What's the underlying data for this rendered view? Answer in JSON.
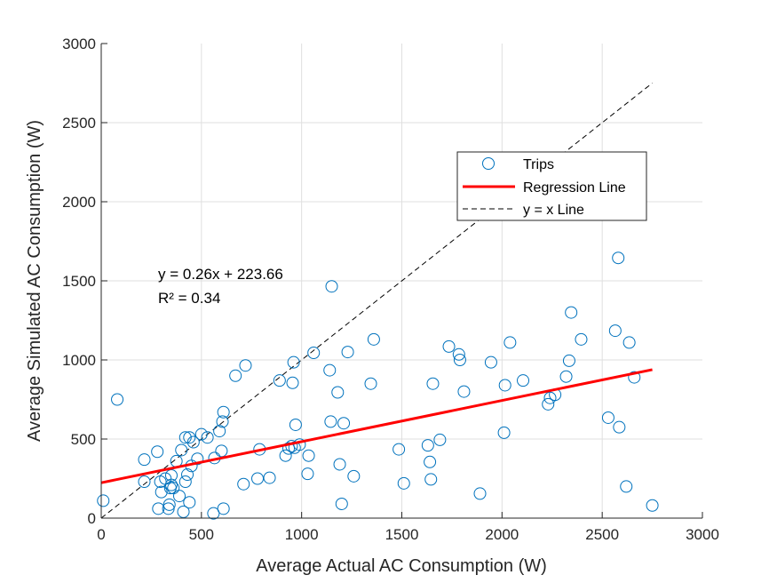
{
  "chart_data": {
    "type": "scatter",
    "title": "",
    "xlabel": "Average Actual AC Consumption (W)",
    "ylabel": "Average Simulated AC Consumption (W)",
    "xlim": [
      0,
      3000
    ],
    "ylim": [
      0,
      3000
    ],
    "xticks": [
      0,
      500,
      1000,
      1500,
      2000,
      2500,
      3000
    ],
    "yticks": [
      0,
      500,
      1000,
      1500,
      2000,
      2500,
      3000
    ],
    "grid": true,
    "legend_position": "upper-right-inside",
    "series": [
      {
        "name": "Trips",
        "kind": "scatter",
        "marker": "circle",
        "color": "#0072BD",
        "points": [
          [
            10,
            110
          ],
          [
            80,
            750
          ],
          [
            215,
            370
          ],
          [
            215,
            230
          ],
          [
            280,
            420
          ],
          [
            285,
            60
          ],
          [
            295,
            230
          ],
          [
            300,
            165
          ],
          [
            320,
            250
          ],
          [
            335,
            60
          ],
          [
            340,
            85
          ],
          [
            345,
            190
          ],
          [
            350,
            270
          ],
          [
            350,
            210
          ],
          [
            360,
            190
          ],
          [
            375,
            360
          ],
          [
            390,
            140
          ],
          [
            400,
            430
          ],
          [
            410,
            40
          ],
          [
            420,
            510
          ],
          [
            420,
            230
          ],
          [
            430,
            275
          ],
          [
            440,
            100
          ],
          [
            440,
            510
          ],
          [
            450,
            330
          ],
          [
            460,
            480
          ],
          [
            480,
            375
          ],
          [
            500,
            530
          ],
          [
            530,
            510
          ],
          [
            560,
            30
          ],
          [
            565,
            380
          ],
          [
            590,
            550
          ],
          [
            600,
            425
          ],
          [
            605,
            610
          ],
          [
            610,
            670
          ],
          [
            610,
            60
          ],
          [
            670,
            900
          ],
          [
            710,
            215
          ],
          [
            720,
            965
          ],
          [
            780,
            250
          ],
          [
            790,
            435
          ],
          [
            840,
            255
          ],
          [
            890,
            870
          ],
          [
            920,
            395
          ],
          [
            935,
            440
          ],
          [
            950,
            455
          ],
          [
            955,
            855
          ],
          [
            960,
            985
          ],
          [
            965,
            445
          ],
          [
            970,
            590
          ],
          [
            990,
            465
          ],
          [
            1030,
            280
          ],
          [
            1035,
            395
          ],
          [
            1060,
            1045
          ],
          [
            1140,
            935
          ],
          [
            1145,
            610
          ],
          [
            1150,
            1465
          ],
          [
            1180,
            795
          ],
          [
            1190,
            340
          ],
          [
            1200,
            90
          ],
          [
            1210,
            600
          ],
          [
            1230,
            1050
          ],
          [
            1260,
            265
          ],
          [
            1345,
            850
          ],
          [
            1360,
            1130
          ],
          [
            1485,
            435
          ],
          [
            1510,
            220
          ],
          [
            1630,
            460
          ],
          [
            1640,
            355
          ],
          [
            1645,
            245
          ],
          [
            1655,
            850
          ],
          [
            1690,
            495
          ],
          [
            1735,
            1085
          ],
          [
            1785,
            1035
          ],
          [
            1790,
            1000
          ],
          [
            1810,
            800
          ],
          [
            1890,
            155
          ],
          [
            1945,
            985
          ],
          [
            2010,
            540
          ],
          [
            2015,
            840
          ],
          [
            2040,
            1110
          ],
          [
            2105,
            870
          ],
          [
            2230,
            720
          ],
          [
            2240,
            760
          ],
          [
            2265,
            780
          ],
          [
            2320,
            895
          ],
          [
            2335,
            995
          ],
          [
            2345,
            1300
          ],
          [
            2395,
            1130
          ],
          [
            2530,
            635
          ],
          [
            2565,
            1185
          ],
          [
            2580,
            1645
          ],
          [
            2585,
            575
          ],
          [
            2620,
            200
          ],
          [
            2635,
            1110
          ],
          [
            2660,
            890
          ],
          [
            2750,
            80
          ]
        ]
      },
      {
        "name": "Regression Line",
        "kind": "line",
        "color": "#FF0000",
        "slope": 0.26,
        "intercept": 223.66,
        "x_range": [
          0,
          2750
        ]
      },
      {
        "name": "y = x Line",
        "kind": "line",
        "color": "#000000",
        "dashed": true,
        "slope": 1,
        "intercept": 0,
        "x_range": [
          0,
          2750
        ]
      }
    ],
    "annotations": [
      "y = 0.26x + 223.66",
      "R² = 0.34"
    ]
  }
}
